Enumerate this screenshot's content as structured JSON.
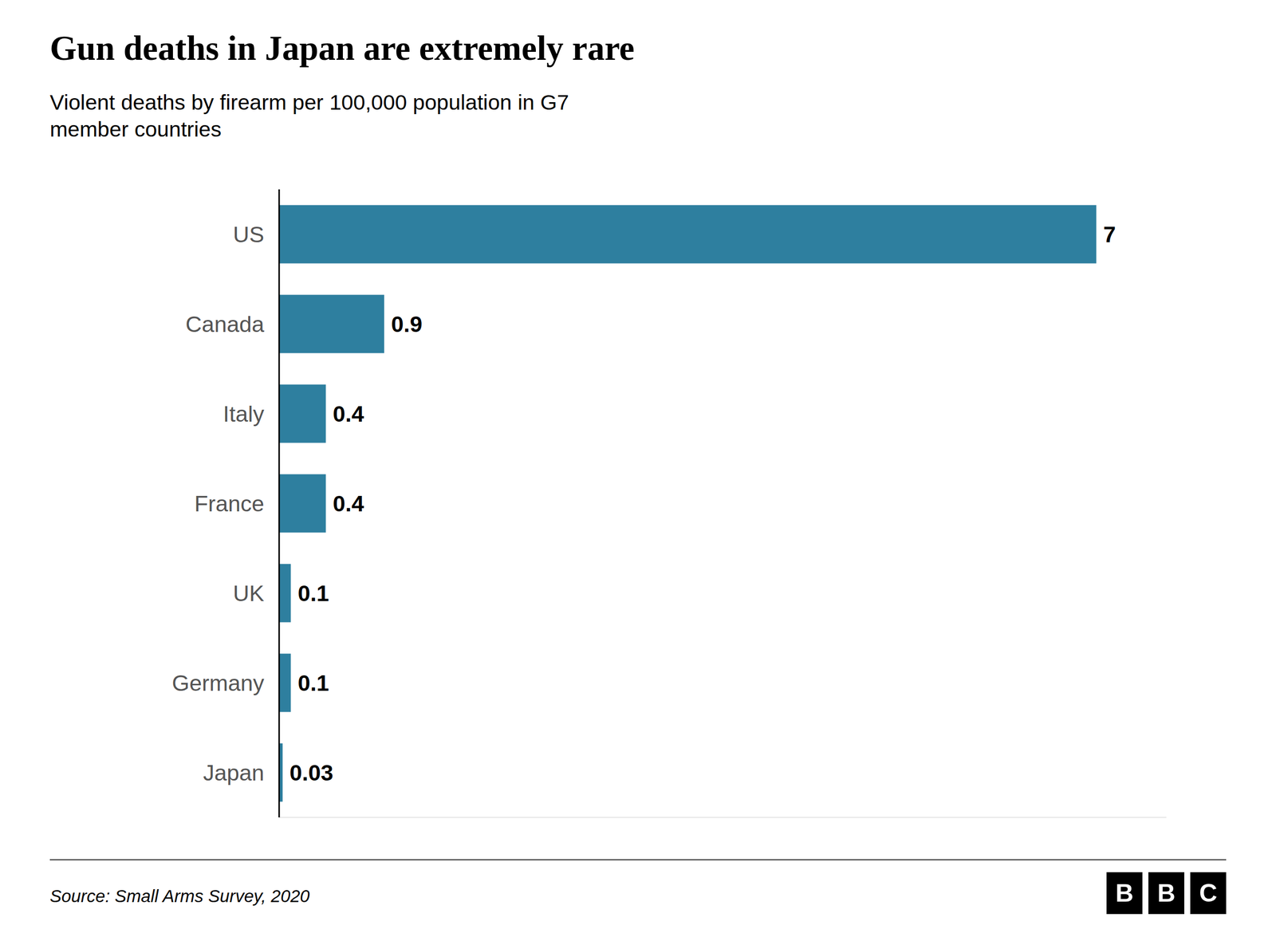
{
  "chart_data": {
    "type": "bar",
    "orientation": "horizontal",
    "title": "Gun deaths in Japan are extremely rare",
    "subtitle": "Violent deaths by firearm per 100,000 population in G7\nmember countries",
    "annotations": [
      "Source: Small Arms Survey, 2020",
      "BBC"
    ],
    "categories": [
      "US",
      "Canada",
      "Italy",
      "France",
      "UK",
      "Germany",
      "Japan"
    ],
    "values": [
      7,
      0.9,
      0.4,
      0.4,
      0.1,
      0.1,
      0.03
    ],
    "color": "#2e7f9f",
    "xlim": [
      0,
      7.6
    ],
    "data_labels": true,
    "tick_labels": false,
    "grid": false
  }
}
